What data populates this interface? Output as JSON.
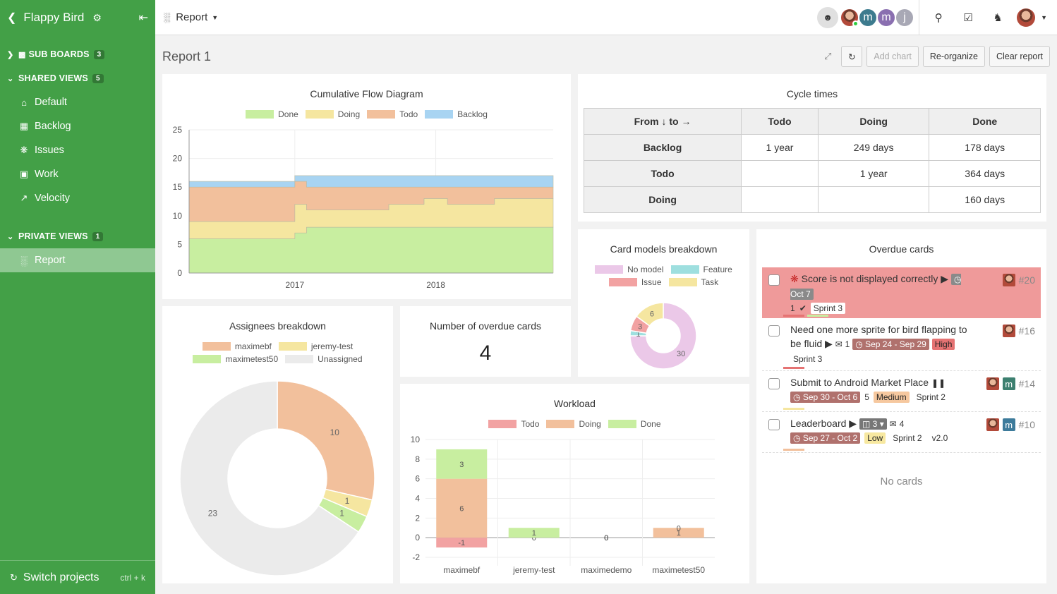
{
  "sidebar": {
    "project": "Flappy Bird",
    "sections": [
      {
        "label": "SUB BOARDS",
        "count": "3"
      },
      {
        "label": "SHARED VIEWS",
        "count": "5"
      },
      {
        "label": "PRIVATE VIEWS",
        "count": "1"
      }
    ],
    "shared": [
      {
        "label": "Default",
        "icon": "home-icon"
      },
      {
        "label": "Backlog",
        "icon": "grid-icon"
      },
      {
        "label": "Issues",
        "icon": "bug-icon"
      },
      {
        "label": "Work",
        "icon": "briefcase-icon"
      },
      {
        "label": "Velocity",
        "icon": "line-chart-icon"
      }
    ],
    "private": [
      {
        "label": "Report",
        "icon": "bar-chart-icon"
      }
    ],
    "footer": {
      "label": "Switch projects",
      "shortcut": "ctrl + k"
    }
  },
  "topbar": {
    "view_label": "Report",
    "avatars": [
      "m",
      "m",
      "j"
    ]
  },
  "report": {
    "title": "Report 1",
    "buttons": {
      "add": "Add chart",
      "reorg": "Re-organize",
      "clear": "Clear report"
    }
  },
  "cfd": {
    "title": "Cumulative Flow Diagram",
    "legend": [
      {
        "name": "Done",
        "color": "#c8eea0"
      },
      {
        "name": "Doing",
        "color": "#f5e6a0"
      },
      {
        "name": "Todo",
        "color": "#f2c09c"
      },
      {
        "name": "Backlog",
        "color": "#a8d4f2"
      }
    ]
  },
  "chart_data": [
    {
      "type": "area",
      "title": "Cumulative Flow Diagram",
      "x_ticks": [
        "2017",
        "2018"
      ],
      "ylim": [
        0,
        25
      ],
      "y_ticks": [
        0,
        5,
        10,
        15,
        20,
        25
      ],
      "x_range": [
        "2016-04",
        "2018-11"
      ],
      "series": [
        {
          "name": "Done",
          "color": "#c8eea0",
          "x": [
            "2016-04",
            "2016-11",
            "2017-01",
            "2017-02",
            "2017-06",
            "2017-09",
            "2017-12",
            "2018-02",
            "2018-06",
            "2018-11"
          ],
          "y": [
            6,
            6,
            7,
            8,
            8,
            8,
            8,
            8,
            8,
            8
          ]
        },
        {
          "name": "Doing",
          "color": "#f5e6a0",
          "x": [
            "2016-04",
            "2016-11",
            "2017-01",
            "2017-02",
            "2017-06",
            "2017-09",
            "2017-12",
            "2018-02",
            "2018-06",
            "2018-11"
          ],
          "y": [
            3,
            3,
            5,
            3,
            3,
            4,
            5,
            4,
            5,
            5
          ]
        },
        {
          "name": "Todo",
          "color": "#f2c09c",
          "x": [
            "2016-04",
            "2016-11",
            "2017-01",
            "2017-02",
            "2017-06",
            "2017-09",
            "2017-12",
            "2018-02",
            "2018-06",
            "2018-11"
          ],
          "y": [
            6,
            6,
            4,
            4,
            4,
            3,
            2,
            3,
            2,
            2
          ]
        },
        {
          "name": "Backlog",
          "color": "#a8d4f2",
          "x": [
            "2016-04",
            "2016-11",
            "2017-01",
            "2017-02",
            "2017-06",
            "2017-09",
            "2017-12",
            "2018-02",
            "2018-06",
            "2018-11"
          ],
          "y": [
            1,
            1,
            1,
            2,
            2,
            2,
            2,
            2,
            2,
            2
          ]
        }
      ]
    },
    {
      "type": "pie",
      "title": "Card models breakdown",
      "series": [
        {
          "name": "No model",
          "value": 30,
          "color": "#ebc8e8"
        },
        {
          "name": "Feature",
          "value": 1,
          "color": "#9edfdf"
        },
        {
          "name": "Issue",
          "value": 3,
          "color": "#f2a2a2"
        },
        {
          "name": "Task",
          "value": 6,
          "color": "#f5e6a0"
        }
      ]
    },
    {
      "type": "pie",
      "title": "Assignees breakdown",
      "series": [
        {
          "name": "maximebf",
          "value": 10,
          "color": "#f2c09c"
        },
        {
          "name": "jeremy-test",
          "value": 1,
          "color": "#f5e6a0"
        },
        {
          "name": "maximetest50",
          "value": 1,
          "color": "#c8eea0"
        },
        {
          "name": "Unassigned",
          "value": 23,
          "color": "#ebebeb"
        }
      ]
    },
    {
      "type": "bar",
      "title": "Workload",
      "categories": [
        "maximebf",
        "jeremy-test",
        "maximedemo",
        "maximetest50"
      ],
      "ylim": [
        -2,
        10
      ],
      "y_ticks": [
        -2,
        0,
        2,
        4,
        6,
        8,
        10
      ],
      "series": [
        {
          "name": "Todo",
          "color": "#f2a2a2",
          "values": [
            -1,
            0,
            0,
            0
          ]
        },
        {
          "name": "Doing",
          "color": "#f2c09c",
          "values": [
            6,
            0,
            0,
            1
          ]
        },
        {
          "name": "Done",
          "color": "#c8eea0",
          "values": [
            3,
            1,
            0,
            0
          ]
        }
      ]
    }
  ],
  "cycle": {
    "title": "Cycle times",
    "header": [
      "From ↓ to →",
      "Todo",
      "Doing",
      "Done"
    ],
    "rows": [
      [
        "Backlog",
        "1 year",
        "249 days",
        "178 days"
      ],
      [
        "Todo",
        "",
        "1 year",
        "364 days"
      ],
      [
        "Doing",
        "",
        "",
        "160 days"
      ]
    ]
  },
  "overdue_count": {
    "title": "Number of overdue cards",
    "value": "4"
  },
  "overdue": {
    "title": "Overdue cards",
    "empty": "No cards",
    "cards": [
      {
        "title": "Score is not displayed correctly",
        "date": "Oct 7",
        "checks": "1",
        "sprint": "Sprint 3",
        "num": "#20"
      },
      {
        "title": "Need one more sprite for bird flapping to be fluid",
        "comments": "1",
        "date": "Sep 24 - Sep 29",
        "priority": "High",
        "sprint": "Sprint 3",
        "num": "#16"
      },
      {
        "title": "Submit to Android Market Place",
        "date": "Sep 30 - Oct 6",
        "points": "5",
        "priority": "Medium",
        "sprint": "Sprint 2",
        "num": "#14",
        "avatar": "m"
      },
      {
        "title": "Leaderboard",
        "sub": "3",
        "comments": "4",
        "date": "Sep 27 - Oct 2",
        "priority": "Low",
        "sprint": "Sprint 2",
        "version": "v2.0",
        "num": "#10",
        "avatar": "m"
      }
    ]
  }
}
